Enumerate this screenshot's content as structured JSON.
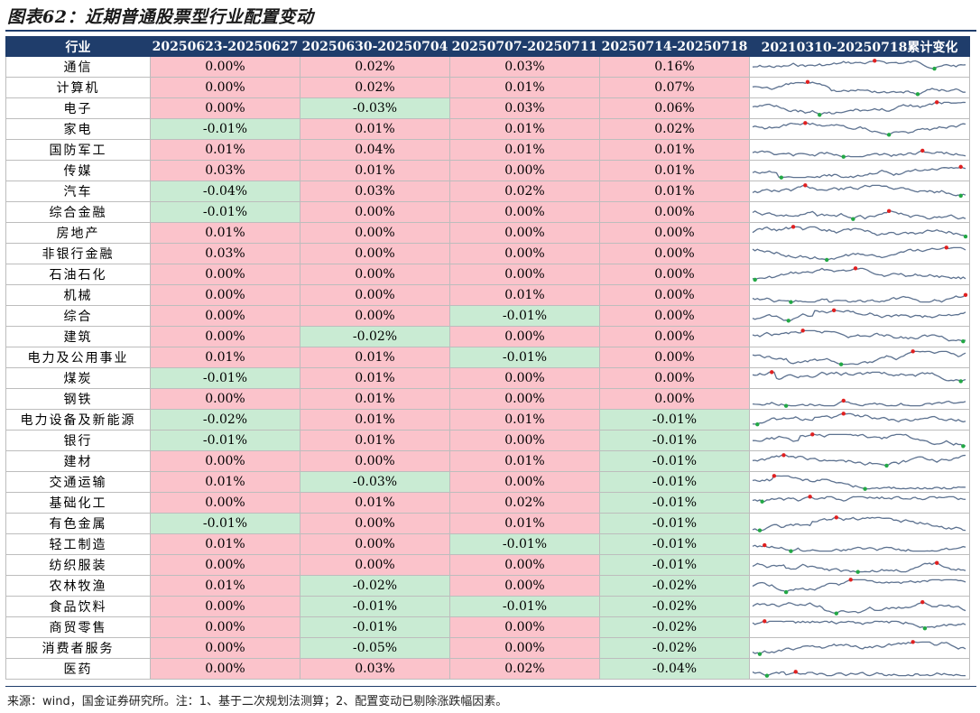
{
  "title": "图表62：近期普通股票型行业配置变动",
  "headers": [
    "行业",
    "20250623-20250627",
    "20250630-20250704",
    "20250707-20250711",
    "20250714-20250718",
    "20210310-20250718累计变化"
  ],
  "colors": {
    "positive": "#fbc3cb",
    "negative": "#c9ebd3",
    "header": "#1f3d6b",
    "line": "#5d7290",
    "peak": "#e02020",
    "trough": "#22a845"
  },
  "rows": [
    {
      "name": "通信",
      "v": [
        "0.00%",
        "0.02%",
        "0.03%",
        "0.16%"
      ]
    },
    {
      "name": "计算机",
      "v": [
        "0.00%",
        "0.02%",
        "0.01%",
        "0.07%"
      ]
    },
    {
      "name": "电子",
      "v": [
        "0.00%",
        "-0.03%",
        "0.03%",
        "0.06%"
      ]
    },
    {
      "name": "家电",
      "v": [
        "-0.01%",
        "0.01%",
        "0.01%",
        "0.02%"
      ]
    },
    {
      "name": "国防军工",
      "v": [
        "0.01%",
        "0.04%",
        "0.01%",
        "0.01%"
      ]
    },
    {
      "name": "传媒",
      "v": [
        "0.03%",
        "0.01%",
        "0.00%",
        "0.01%"
      ]
    },
    {
      "name": "汽车",
      "v": [
        "-0.04%",
        "0.03%",
        "0.02%",
        "0.01%"
      ]
    },
    {
      "name": "综合金融",
      "v": [
        "-0.01%",
        "0.00%",
        "0.00%",
        "0.00%"
      ]
    },
    {
      "name": "房地产",
      "v": [
        "0.01%",
        "0.00%",
        "0.00%",
        "0.00%"
      ]
    },
    {
      "name": "非银行金融",
      "v": [
        "0.03%",
        "0.00%",
        "0.00%",
        "0.00%"
      ]
    },
    {
      "name": "石油石化",
      "v": [
        "0.00%",
        "0.00%",
        "0.00%",
        "0.00%"
      ]
    },
    {
      "name": "机械",
      "v": [
        "0.00%",
        "0.00%",
        "0.01%",
        "0.00%"
      ]
    },
    {
      "name": "综合",
      "v": [
        "0.00%",
        "0.00%",
        "-0.01%",
        "0.00%"
      ]
    },
    {
      "name": "建筑",
      "v": [
        "0.00%",
        "-0.02%",
        "0.00%",
        "0.00%"
      ]
    },
    {
      "name": "电力及公用事业",
      "v": [
        "0.01%",
        "0.01%",
        "-0.01%",
        "0.00%"
      ]
    },
    {
      "name": "煤炭",
      "v": [
        "-0.01%",
        "0.01%",
        "0.00%",
        "0.00%"
      ]
    },
    {
      "name": "钢铁",
      "v": [
        "0.00%",
        "0.01%",
        "0.00%",
        "0.00%"
      ]
    },
    {
      "name": "电力设备及新能源",
      "v": [
        "-0.02%",
        "0.01%",
        "0.01%",
        "-0.01%"
      ]
    },
    {
      "name": "银行",
      "v": [
        "-0.01%",
        "0.01%",
        "0.00%",
        "-0.01%"
      ]
    },
    {
      "name": "建材",
      "v": [
        "0.00%",
        "0.00%",
        "0.01%",
        "-0.01%"
      ]
    },
    {
      "name": "交通运输",
      "v": [
        "0.01%",
        "-0.03%",
        "0.00%",
        "-0.01%"
      ]
    },
    {
      "name": "基础化工",
      "v": [
        "0.00%",
        "0.01%",
        "0.02%",
        "-0.01%"
      ]
    },
    {
      "name": "有色金属",
      "v": [
        "-0.01%",
        "0.00%",
        "0.01%",
        "-0.01%"
      ]
    },
    {
      "name": "轻工制造",
      "v": [
        "0.01%",
        "0.00%",
        "-0.01%",
        "-0.01%"
      ]
    },
    {
      "name": "纺织服装",
      "v": [
        "0.00%",
        "0.00%",
        "0.00%",
        "-0.01%"
      ]
    },
    {
      "name": "农林牧渔",
      "v": [
        "0.01%",
        "-0.02%",
        "0.00%",
        "-0.02%"
      ]
    },
    {
      "name": "食品饮料",
      "v": [
        "0.00%",
        "-0.01%",
        "-0.01%",
        "-0.02%"
      ]
    },
    {
      "name": "商贸零售",
      "v": [
        "0.00%",
        "-0.01%",
        "0.00%",
        "-0.02%"
      ]
    },
    {
      "name": "消费者服务",
      "v": [
        "0.00%",
        "-0.05%",
        "0.00%",
        "-0.02%"
      ]
    },
    {
      "name": "医药",
      "v": [
        "0.00%",
        "0.03%",
        "0.02%",
        "-0.04%"
      ]
    }
  ],
  "footnote": "来源：wind，国金证券研究所。注：1、基于二次规划法测算；2、配置变动已剔除涨跌幅因素。"
}
